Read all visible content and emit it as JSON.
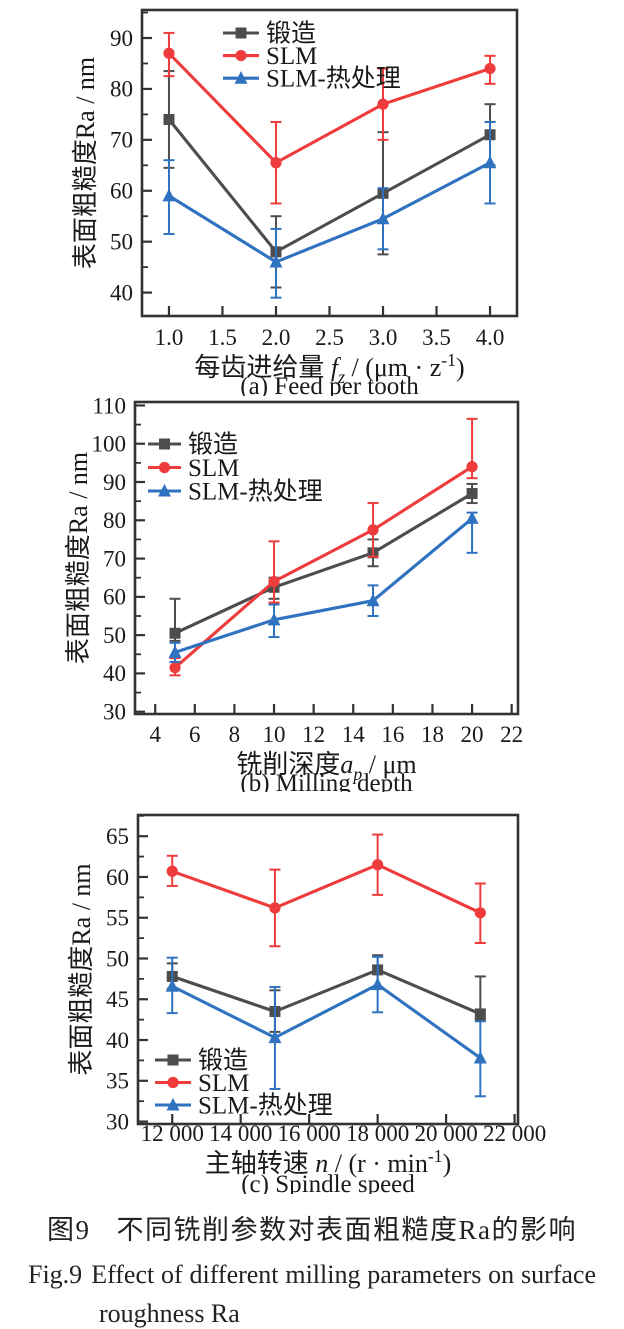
{
  "figure": {
    "caption_zh_label": "图9",
    "caption_zh_text": "不同铣削参数对表面粗糙度Ra的影响",
    "caption_en_label": "Fig.9",
    "caption_en_line1": "Effect of different milling parameters on surface",
    "caption_en_line2": "roughness Ra"
  },
  "colors": {
    "forged": "#4d4d4d",
    "slm": "#ee3b3c",
    "slm_ht": "#2e72c0",
    "axis": "#333333",
    "text": "#1a1a1a"
  },
  "chart_data": [
    {
      "type": "line",
      "panel_label": "(a) Feed per tooth",
      "ylabel": "表面粗糙度Ra / nm",
      "xlabel_segments": [
        [
          "每齿进给量 ",
          "n"
        ],
        [
          "f",
          "i"
        ],
        [
          "z",
          "sub"
        ],
        [
          " / (μm · z",
          "n"
        ],
        [
          "-1",
          "sup"
        ],
        [
          ")",
          "n"
        ]
      ],
      "x": [
        1.0,
        2.0,
        3.0,
        4.0
      ],
      "xticks": [
        1.0,
        1.5,
        2.0,
        2.5,
        3.0,
        3.5,
        4.0
      ],
      "xtick_labels": [
        "1.0",
        "1.5",
        "2.0",
        "2.5",
        "3.0",
        "3.5",
        "4.0"
      ],
      "xlim": [
        0.748,
        4.252
      ],
      "ylim": [
        35.4,
        95.5
      ],
      "yticks": [
        40,
        50,
        60,
        70,
        80,
        90
      ],
      "yminor_step": 5,
      "legend_position": "upper-inner-left",
      "grid": false,
      "series": [
        {
          "name": "锻造",
          "marker": "square",
          "color_key": "forged",
          "values": [
            74,
            48,
            59.5,
            71
          ],
          "err_low": [
            64.5,
            41,
            47.5,
            65
          ],
          "err_high": [
            83.5,
            55,
            71.5,
            77
          ]
        },
        {
          "name": "SLM",
          "marker": "circle",
          "color_key": "slm",
          "values": [
            87,
            65.5,
            77,
            84
          ],
          "err_low": [
            82.5,
            57.5,
            70,
            81
          ],
          "err_high": [
            91,
            73.5,
            84,
            86.5
          ]
        },
        {
          "name": "SLM-热处理",
          "marker": "triangle",
          "color_key": "slm_ht",
          "values": [
            59,
            46,
            54.5,
            65.5
          ],
          "err_low": [
            51.5,
            39,
            48.5,
            57.5
          ],
          "err_high": [
            66,
            52.5,
            60.5,
            73.5
          ]
        }
      ]
    },
    {
      "type": "line",
      "panel_label": "(b) Milling depth",
      "ylabel": "表面粗糙度Ra / nm",
      "xlabel_segments": [
        [
          "铣削深度",
          "n"
        ],
        [
          "a",
          "i"
        ],
        [
          "p",
          "sub"
        ],
        [
          " / μm",
          "n"
        ]
      ],
      "x": [
        5,
        10,
        15,
        20
      ],
      "xticks": [
        4,
        6,
        8,
        10,
        12,
        14,
        16,
        18,
        20,
        22
      ],
      "xtick_labels": [
        "4",
        "6",
        "8",
        "10",
        "12",
        "14",
        "16",
        "18",
        "20",
        "22"
      ],
      "xlim": [
        2.98,
        22.32
      ],
      "ylim": [
        29.4,
        110.9
      ],
      "yticks": [
        30,
        40,
        50,
        60,
        70,
        80,
        90,
        100,
        110
      ],
      "yminor_step": 5,
      "legend_position": "upper-inner-left",
      "grid": false,
      "series": [
        {
          "name": "锻造",
          "marker": "square",
          "color_key": "forged",
          "values": [
            50.5,
            62.5,
            71.5,
            87
          ],
          "err_low": [
            48.5,
            59.5,
            68,
            84.5
          ],
          "err_high": [
            59.5,
            65,
            75,
            89.5
          ]
        },
        {
          "name": "SLM",
          "marker": "circle",
          "color_key": "slm",
          "values": [
            41.5,
            64,
            77.5,
            94
          ],
          "err_low": [
            39.5,
            58.5,
            70.5,
            91
          ],
          "err_high": [
            44,
            74.5,
            84.5,
            106.5
          ]
        },
        {
          "name": "SLM-热处理",
          "marker": "triangle",
          "color_key": "slm_ht",
          "values": [
            45.5,
            54,
            59,
            80.5
          ],
          "err_low": [
            43,
            49.5,
            55,
            71.5
          ],
          "err_high": [
            48,
            58,
            63,
            82
          ]
        }
      ]
    },
    {
      "type": "line",
      "panel_label": "(c) Spindle speed",
      "ylabel": "表面粗糙度Ra / nm",
      "xlabel_segments": [
        [
          "主轴转速 ",
          "n"
        ],
        [
          "n",
          "i"
        ],
        [
          " / (r · min",
          "n"
        ],
        [
          "-1",
          "sup"
        ],
        [
          ")",
          "n"
        ]
      ],
      "x": [
        12000,
        15000,
        18000,
        21000
      ],
      "xticks": [
        12000,
        14000,
        16000,
        18000,
        20000,
        22000
      ],
      "xtick_labels": [
        "12 000",
        "14 000",
        "16 000",
        "18 000",
        "20 000",
        "22 000"
      ],
      "xlim": [
        11000,
        22100
      ],
      "ylim": [
        29.7,
        67.6
      ],
      "yticks": [
        30,
        35,
        40,
        45,
        50,
        55,
        60,
        65
      ],
      "yminor_step": 2.5,
      "legend_position": "lower-inner-left",
      "grid": false,
      "series": [
        {
          "name": "锻造",
          "marker": "square",
          "color_key": "forged",
          "values": [
            47.8,
            43.5,
            48.6,
            43.2
          ],
          "err_low": [
            46.3,
            41,
            46.5,
            42.5
          ],
          "err_high": [
            49.4,
            46.1,
            50.4,
            47.8
          ]
        },
        {
          "name": "SLM",
          "marker": "circle",
          "color_key": "slm",
          "values": [
            60.7,
            56.2,
            61.5,
            55.6
          ],
          "err_low": [
            58.9,
            51.5,
            57.8,
            51.9
          ],
          "err_high": [
            62.6,
            60.9,
            65.2,
            59.2
          ]
        },
        {
          "name": "SLM-热处理",
          "marker": "triangle",
          "color_key": "slm_ht",
          "values": [
            46.6,
            40.3,
            46.8,
            37.8
          ],
          "err_low": [
            43.3,
            34,
            43.4,
            33.1
          ],
          "err_high": [
            50.1,
            46.5,
            50.2,
            42.3
          ]
        }
      ]
    }
  ]
}
